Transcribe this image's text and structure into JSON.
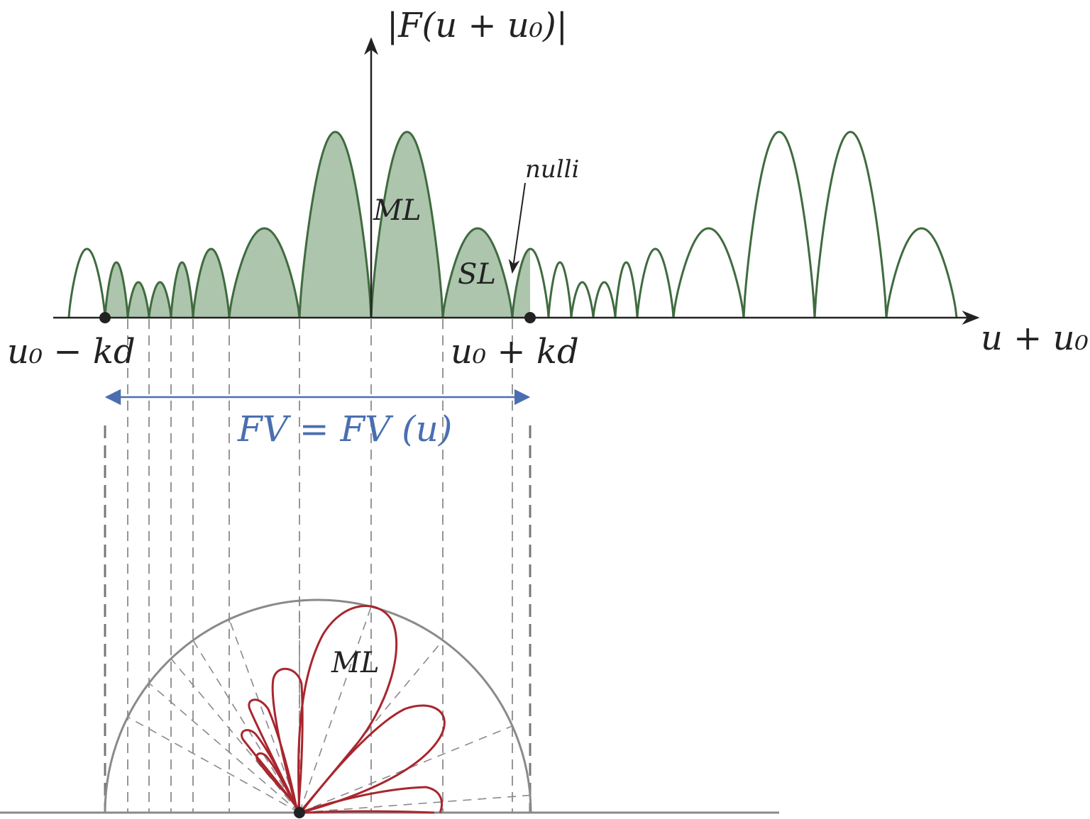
{
  "labels": {
    "y_axis": "|F(u + u₀)|",
    "x_axis": "u + u₀",
    "left_end": "u₀ − kd",
    "right_end": "u₀ + kd",
    "main_lobe_top": "ML",
    "side_lobe": "SL",
    "nulls": "nulli",
    "visible_range": "FV = FV (u)",
    "main_lobe_polar": "ML"
  },
  "colors": {
    "array_factor_stroke": "#3f6b3f",
    "visible_fill": "#adc4ad",
    "polar_pattern": "#a8262e",
    "visible_range_marker": "#4a6fb0",
    "axis": "#222222",
    "guide_lines": "#8a8a8a"
  },
  "array_factor": {
    "null_positions": [
      97,
      148,
      180,
      210,
      241,
      272,
      323,
      422,
      523,
      624,
      722,
      773,
      805,
      836,
      867,
      898,
      949,
      1048,
      1148,
      1249,
      1348
    ],
    "main_lobe_at": [
      523,
      1148
    ],
    "visible_interval": [
      148,
      747
    ],
    "lobe_heights": [
      97,
      78,
      50,
      50,
      78,
      97,
      126,
      262,
      262,
      126,
      97,
      78,
      50,
      50,
      78,
      97,
      126,
      262,
      262,
      126
    ]
  }
}
